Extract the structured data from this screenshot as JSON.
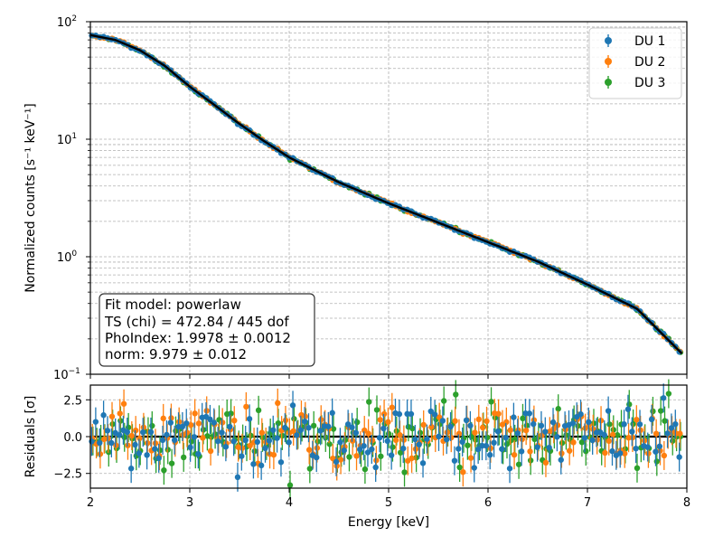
{
  "chart_data": [
    {
      "type": "scatter",
      "panel": "spectrum",
      "title": "",
      "xlabel": "",
      "ylabel": "Normalized counts [s⁻¹ keV⁻¹]",
      "xlim": [
        2,
        8
      ],
      "ylim": [
        0.1,
        100
      ],
      "yscale": "log",
      "grid": true,
      "legend_position": "top-right",
      "x_ticks": [
        2,
        3,
        4,
        5,
        6,
        7,
        8
      ],
      "y_ticks": [
        {
          "base": "10",
          "exp": "2"
        },
        {
          "base": "10",
          "exp": "1"
        },
        {
          "base": "10",
          "exp": "0"
        },
        {
          "base": "10",
          "exp": "−1"
        }
      ],
      "series": [
        {
          "name": "DU 1",
          "color": "#1f77b4"
        },
        {
          "name": "DU 2",
          "color": "#ff7f0e"
        },
        {
          "name": "DU 3",
          "color": "#2ca02c"
        }
      ],
      "model_curve": {
        "color": "#000000",
        "x": [
          2.0,
          2.25,
          2.5,
          2.75,
          3.0,
          3.25,
          3.5,
          3.75,
          4.0,
          4.5,
          5.0,
          5.5,
          6.0,
          6.5,
          7.0,
          7.5,
          7.95
        ],
        "y": [
          77,
          70,
          57,
          42,
          28,
          19.5,
          13.5,
          9.6,
          7.0,
          4.3,
          2.85,
          1.95,
          1.33,
          0.91,
          0.58,
          0.36,
          0.15
        ]
      },
      "annotation": {
        "lines": [
          "Fit model: powerlaw",
          "TS (chi) = 472.84 / 445 dof",
          "PhoIndex: 1.9978 ± 0.0012",
          "norm: 9.979 ± 0.012"
        ]
      }
    },
    {
      "type": "scatter",
      "panel": "residuals",
      "xlabel": "Energy [keV]",
      "ylabel": "Residuals [σ]",
      "xlim": [
        2,
        8
      ],
      "ylim": [
        -3.5,
        3.5
      ],
      "grid": true,
      "x_ticks": [
        "2",
        "3",
        "4",
        "5",
        "6",
        "7",
        "8"
      ],
      "y_ticks": [
        "2.5",
        "0.0",
        "−2.5"
      ],
      "zero_line": 0
    }
  ]
}
